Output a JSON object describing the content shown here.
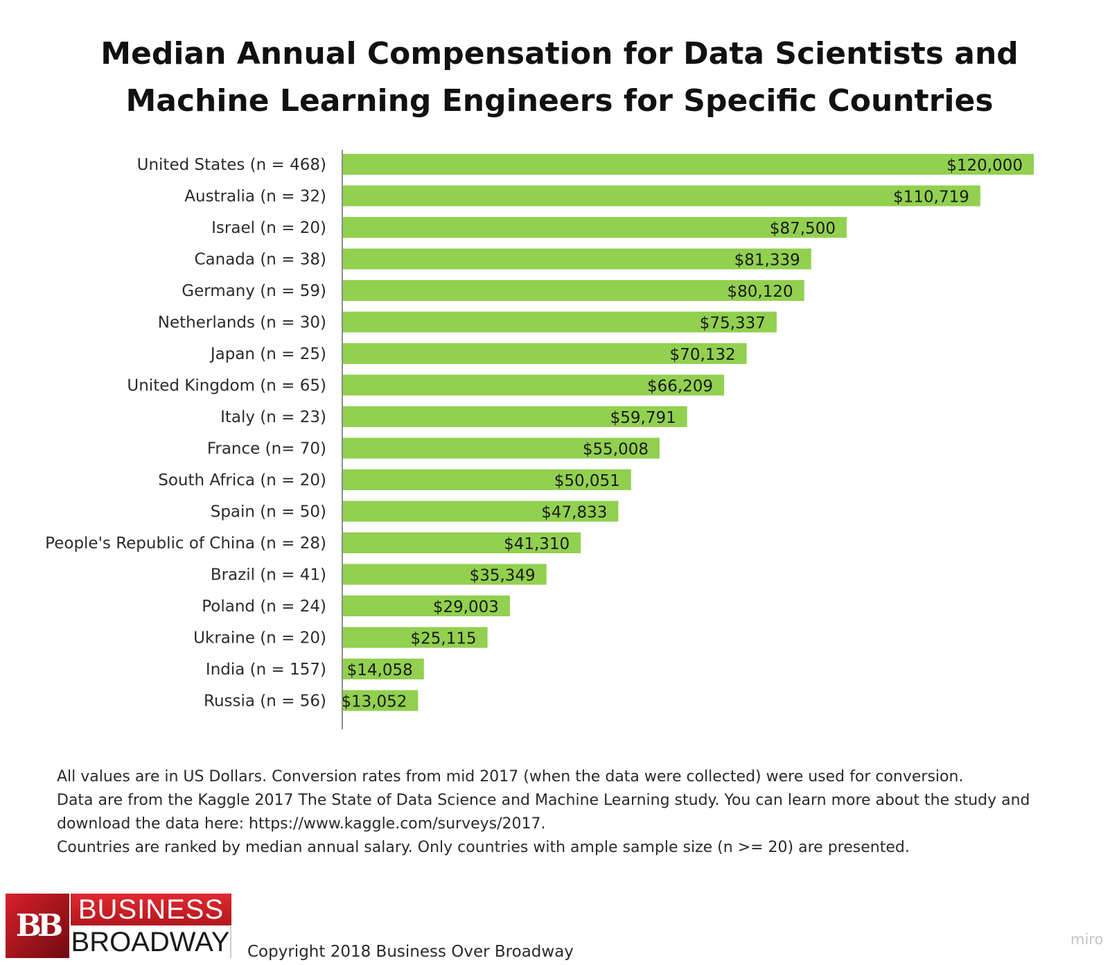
{
  "title": {
    "line1": "Median Annual Compensation for Data Scientists and",
    "line2": "Machine Learning Engineers for Specific Countries"
  },
  "chart_data": {
    "type": "bar",
    "orientation": "horizontal",
    "title": "Median Annual Compensation for Data Scientists and Machine Learning Engineers for Specific Countries",
    "xlabel": "",
    "ylabel": "",
    "xlim": [
      0,
      120000
    ],
    "grid": false,
    "legend": "none",
    "bar_color": "#92d050",
    "categories": [
      "United States (n =  468)",
      "Australia (n =  32)",
      "Israel (n = 20)",
      "Canada (n = 38)",
      "Germany (n = 59)",
      "Netherlands (n = 30)",
      "Japan (n =  25)",
      "United Kingdom (n =  65)",
      "Italy (n =  23)",
      "France (n= 70)",
      "South Africa (n = 20)",
      "Spain (n =  50)",
      "People's Republic of China (n = 28)",
      "Brazil (n =  41)",
      "Poland (n =  24)",
      "Ukraine (n = 20)",
      "India (n =  157)",
      "Russia (n =  56)"
    ],
    "values": [
      120000,
      110719,
      87500,
      81339,
      80120,
      75337,
      70132,
      66209,
      59791,
      55008,
      50051,
      47833,
      41310,
      35349,
      29003,
      25115,
      14058,
      13052
    ],
    "value_labels": [
      "$120,000",
      "$110,719",
      "$87,500",
      "$81,339",
      "$80,120",
      "$75,337",
      "$70,132",
      "$66,209",
      "$59,791",
      "$55,008",
      "$50,051",
      "$47,833",
      "$41,310",
      "$35,349",
      "$29,003",
      "$25,115",
      "$14,058",
      "$13,052"
    ]
  },
  "notes": {
    "line1": "All values are in US Dollars. Conversion rates from mid 2017 (when the data were collected) were used for conversion.",
    "line2": "Data are from the Kaggle 2017 The State of Data Science and Machine Learning study. You can learn more about the study and",
    "line3": "download the data here: https://www.kaggle.com/surveys/2017.",
    "line4": "Countries are ranked by median annual salary. Only countries with ample sample size (n >= 20) are presented."
  },
  "logo": {
    "mark": "BB",
    "word1": "BUSINESS",
    "word2": "BROADWAY"
  },
  "copyright": "Copyright 2018 Business Over Broadway",
  "watermark": "miro"
}
